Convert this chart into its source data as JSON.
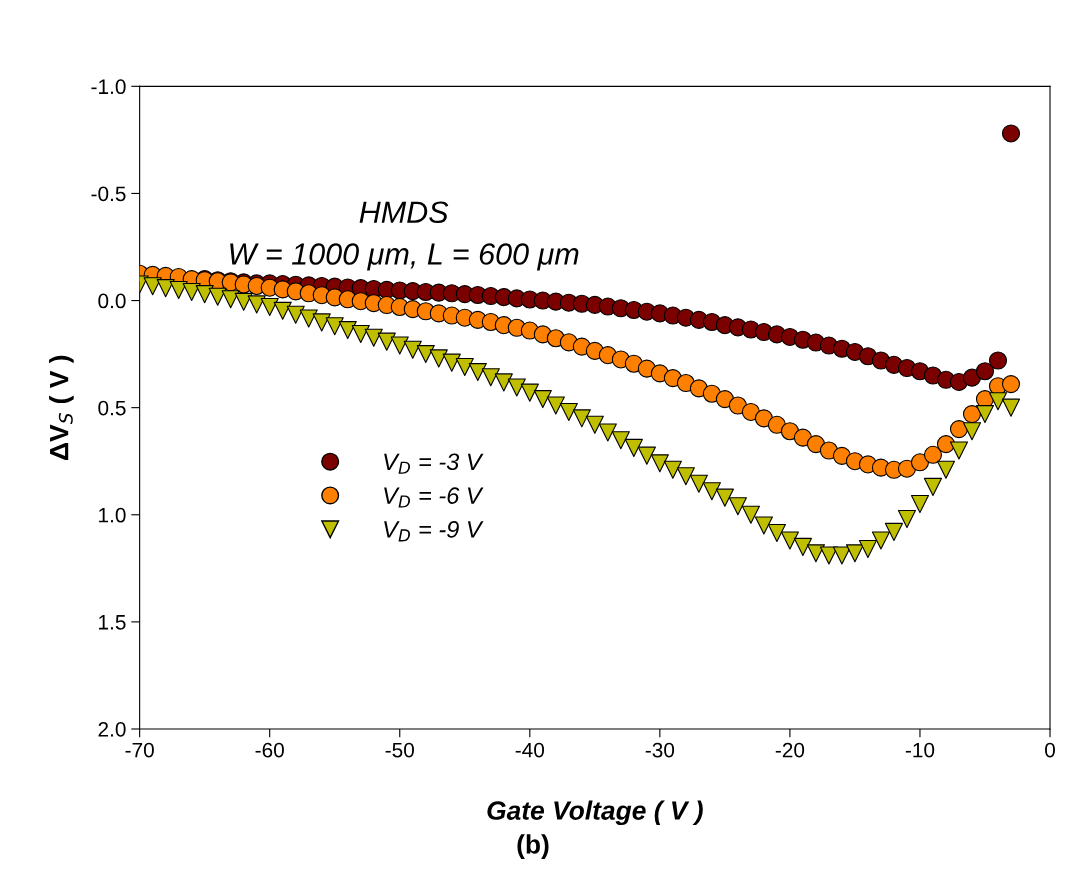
{
  "chart_data": {
    "type": "scatter",
    "xlabel": "Gate Voltage ( V )",
    "ylabel": "ΔV$_{S}$ ( V )",
    "annotations": [
      "HMDS",
      "W = 1000 μm, L = 600 μm",
      "(b)"
    ],
    "x": [
      -70,
      -69,
      -68,
      -67,
      -66,
      -65,
      -64,
      -63,
      -62,
      -61,
      -60,
      -59,
      -58,
      -57,
      -56,
      -55,
      -54,
      -53,
      -52,
      -51,
      -50,
      -49,
      -48,
      -47,
      -46,
      -45,
      -44,
      -43,
      -42,
      -41,
      -40,
      -39,
      -38,
      -37,
      -36,
      -35,
      -34,
      -33,
      -32,
      -31,
      -30,
      -29,
      -28,
      -27,
      -26,
      -25,
      -24,
      -23,
      -22,
      -21,
      -20,
      -19,
      -18,
      -17,
      -16,
      -15,
      -14,
      -13,
      -12,
      -11,
      -10,
      -9,
      -8,
      -7,
      -6,
      -5,
      -4,
      -3
    ],
    "series": [
      {
        "name": "V$_{D}$ = -3 V",
        "color": "#7b0000",
        "marker": "circle",
        "values": [
          -0.12,
          null,
          null,
          null,
          null,
          -0.1,
          -0.095,
          -0.09,
          -0.085,
          -0.08,
          -0.08,
          -0.077,
          -0.074,
          -0.071,
          -0.068,
          -0.065,
          -0.061,
          -0.058,
          -0.054,
          -0.05,
          -0.047,
          -0.044,
          -0.04,
          -0.037,
          -0.034,
          -0.03,
          -0.026,
          -0.021,
          -0.016,
          -0.01,
          -0.005,
          0.0,
          0.005,
          0.01,
          0.015,
          0.02,
          0.028,
          0.036,
          0.044,
          0.052,
          0.06,
          0.07,
          0.08,
          0.09,
          0.1,
          0.115,
          0.125,
          0.135,
          0.147,
          0.158,
          0.17,
          0.183,
          0.196,
          0.21,
          0.225,
          0.24,
          0.26,
          0.28,
          0.3,
          0.315,
          0.33,
          0.35,
          0.37,
          0.38,
          0.36,
          0.33,
          0.28,
          -0.78
        ]
      },
      {
        "name": "V$_{D}$ = -6 V",
        "color": "#ff8000",
        "marker": "circle",
        "values": [
          -0.125,
          -0.12,
          -0.115,
          -0.11,
          -0.1,
          -0.095,
          -0.09,
          -0.085,
          -0.075,
          -0.068,
          -0.06,
          -0.052,
          -0.043,
          -0.034,
          -0.025,
          -0.015,
          -0.006,
          0.003,
          0.012,
          0.021,
          0.03,
          0.04,
          0.05,
          0.06,
          0.07,
          0.08,
          0.09,
          0.1,
          0.115,
          0.127,
          0.14,
          0.158,
          0.176,
          0.195,
          0.215,
          0.235,
          0.255,
          0.275,
          0.295,
          0.318,
          0.34,
          0.362,
          0.385,
          0.41,
          0.435,
          0.46,
          0.49,
          0.52,
          0.55,
          0.58,
          0.61,
          0.64,
          0.67,
          0.7,
          0.725,
          0.75,
          0.765,
          0.78,
          0.79,
          0.785,
          0.755,
          0.72,
          0.67,
          0.6,
          0.53,
          0.46,
          0.4,
          0.39
        ]
      },
      {
        "name": "V$_{D}$ = -9 V",
        "color": "#bfbf00",
        "marker": "triangle",
        "values": [
          -0.075,
          -0.067,
          -0.058,
          -0.049,
          -0.04,
          -0.03,
          -0.018,
          -0.006,
          0.006,
          0.018,
          0.03,
          0.048,
          0.066,
          0.084,
          0.102,
          0.12,
          0.138,
          0.156,
          0.174,
          0.192,
          0.21,
          0.23,
          0.25,
          0.27,
          0.29,
          0.31,
          0.334,
          0.358,
          0.382,
          0.406,
          0.43,
          0.46,
          0.49,
          0.52,
          0.55,
          0.58,
          0.616,
          0.652,
          0.688,
          0.724,
          0.76,
          0.79,
          0.82,
          0.855,
          0.89,
          0.92,
          0.96,
          1.0,
          1.05,
          1.085,
          1.12,
          1.15,
          1.18,
          1.19,
          1.19,
          1.18,
          1.16,
          1.12,
          1.08,
          1.02,
          0.95,
          0.87,
          0.79,
          0.7,
          0.61,
          0.53,
          0.47,
          0.5
        ]
      }
    ],
    "xlim": [
      -70,
      0
    ],
    "xticks": [
      -70,
      -60,
      -50,
      -40,
      -30,
      -20,
      -10,
      0
    ],
    "ylim": [
      2.0,
      -1.0
    ],
    "yticks": [
      {
        "value": -1.0,
        "label": "-1.0"
      },
      {
        "value": -0.5,
        "label": "-0.5"
      },
      {
        "value": 0.0,
        "label": "0.0"
      },
      {
        "value": 0.5,
        "label": "0.5"
      },
      {
        "value": 1.0,
        "label": "1.0"
      },
      {
        "value": 1.5,
        "label": "1.5"
      },
      {
        "value": 2.0,
        "label": "2.0"
      }
    ],
    "grid": false,
    "legend": "center left"
  }
}
